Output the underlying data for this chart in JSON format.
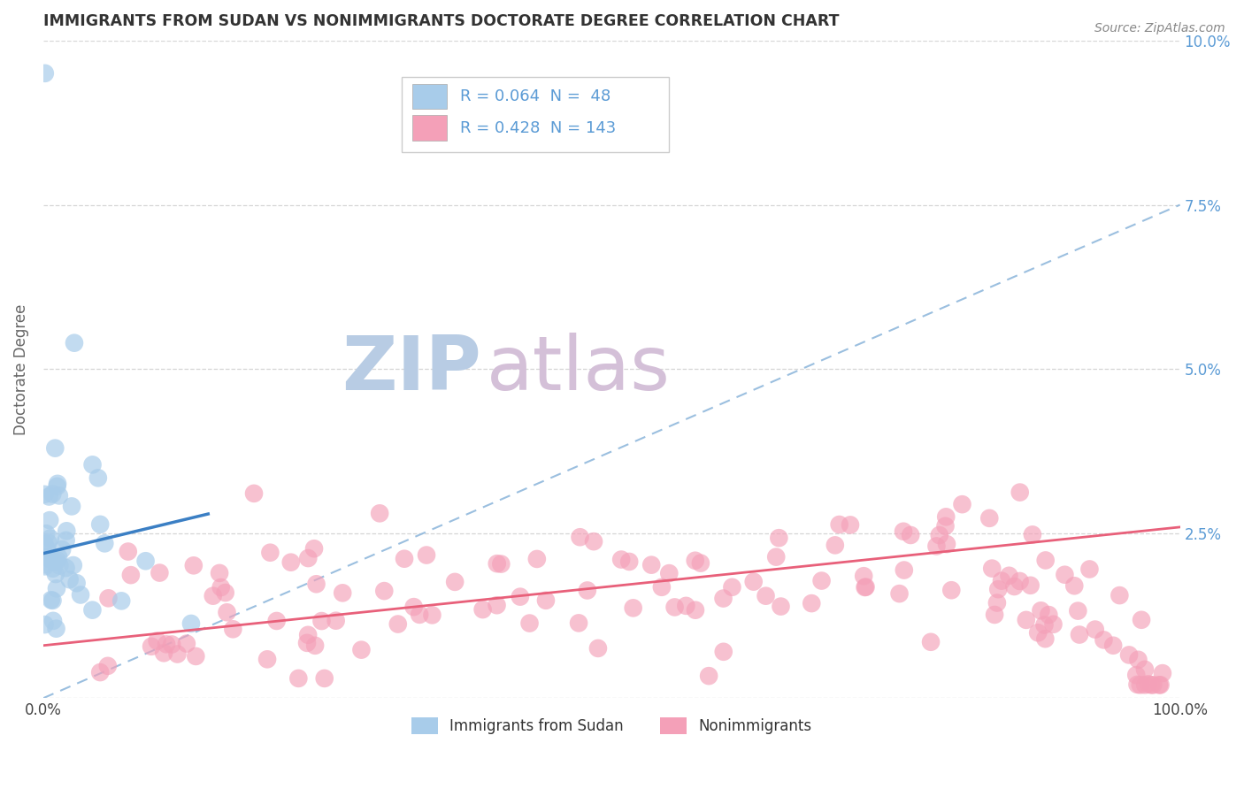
{
  "title": "IMMIGRANTS FROM SUDAN VS NONIMMIGRANTS DOCTORATE DEGREE CORRELATION CHART",
  "source_text": "Source: ZipAtlas.com",
  "ylabel": "Doctorate Degree",
  "x_min": 0.0,
  "x_max": 1.0,
  "y_min": 0.0,
  "y_max": 0.1,
  "color_blue": "#A8CCEA",
  "color_pink": "#F4A0B8",
  "line_blue": "#3B7FC4",
  "line_pink": "#E8607A",
  "dash_color": "#90B8DC",
  "bg_color": "#FFFFFF",
  "grid_color": "#CCCCCC",
  "title_color": "#333333",
  "axis_label_color": "#666666",
  "tick_color_right": "#5B9BD5",
  "legend_text_color": "#5B9BD5",
  "watermark_ZIP_color": "#C8D8EC",
  "watermark_atlas_color": "#D8C8E0",
  "blue_line_x": [
    0.0,
    0.145
  ],
  "blue_line_y": [
    0.022,
    0.028
  ],
  "pink_line_x": [
    0.0,
    1.0
  ],
  "pink_line_y": [
    0.008,
    0.026
  ],
  "dash_line_x": [
    0.0,
    1.0
  ],
  "dash_line_y": [
    0.0,
    0.075
  ]
}
